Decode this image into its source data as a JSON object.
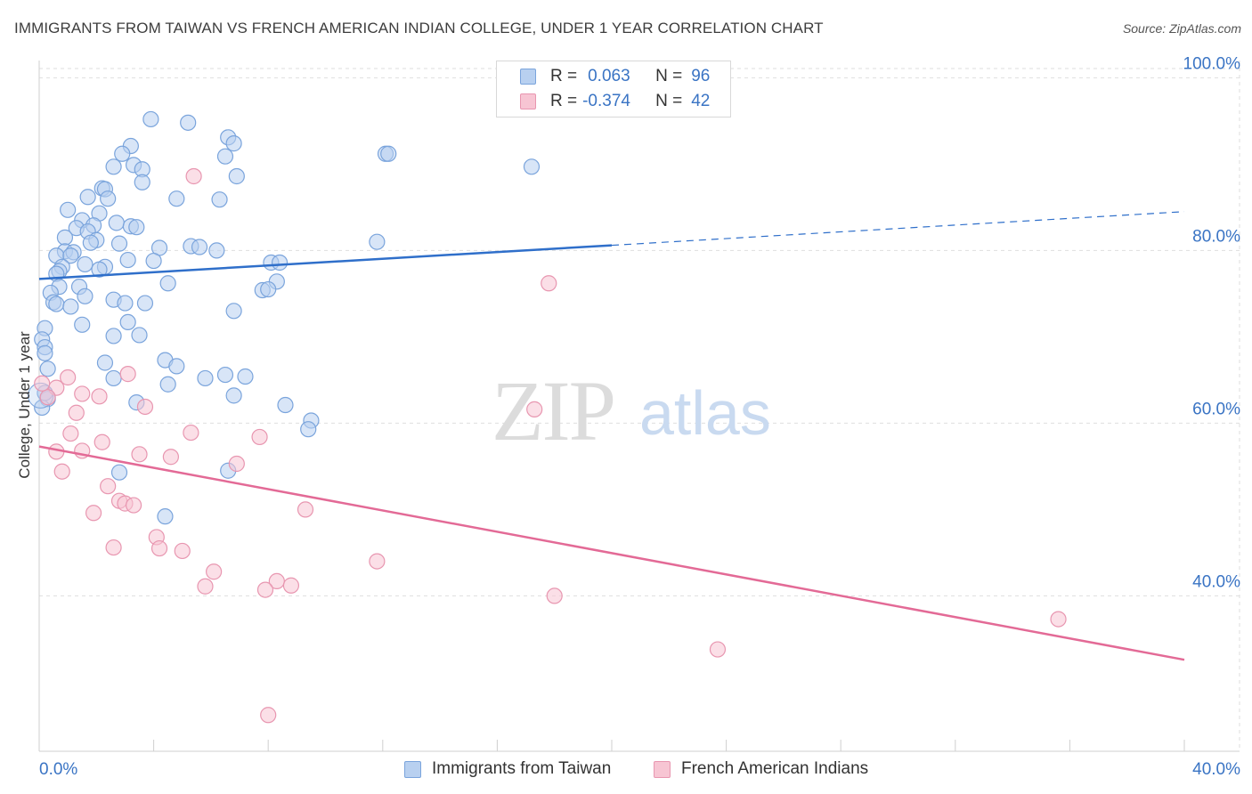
{
  "title": "IMMIGRANTS FROM TAIWAN VS FRENCH AMERICAN INDIAN COLLEGE, UNDER 1 YEAR CORRELATION CHART",
  "source": "Source: ZipAtlas.com",
  "watermark": {
    "zip": "ZIP",
    "atlas": "atlas"
  },
  "colors": {
    "blue_fill": "#b8d0f0",
    "blue_stroke": "#7aa4dc",
    "blue_line": "#2f6fca",
    "pink_fill": "#f7c5d3",
    "pink_stroke": "#e896b0",
    "pink_line": "#e36a96",
    "grid": "#dedede",
    "axis_text": "#3a74c4"
  },
  "legend": [
    {
      "r_label": "R =",
      "r_value": "0.063",
      "n_label": "N =",
      "n_value": "96"
    },
    {
      "r_label": "R =",
      "r_value": "-0.374",
      "n_label": "N =",
      "n_value": "42"
    }
  ],
  "bottom_legend": [
    "Immigrants from Taiwan",
    "French American Indians"
  ],
  "chart_data": {
    "type": "scatter",
    "title": "IMMIGRANTS FROM TAIWAN VS FRENCH AMERICAN INDIAN COLLEGE, UNDER 1 YEAR CORRELATION CHART",
    "xlabel": "",
    "ylabel": "College, Under 1 year",
    "xlim": [
      0,
      40
    ],
    "ylim": [
      22,
      102
    ],
    "x_tick_labels": [
      "0.0%",
      "40.0%"
    ],
    "y_ticks": [
      40,
      60,
      80,
      100
    ],
    "y_tick_labels": [
      "40.0%",
      "60.0%",
      "80.0%",
      "100.0%"
    ],
    "grid": true,
    "series": [
      {
        "name": "Immigrants from Taiwan",
        "r": 0.063,
        "n": 96,
        "trend": {
          "x0": 0,
          "y0": 76.7,
          "x1": 20,
          "y1": 80.6,
          "dash_x1": 40,
          "dash_y1": 84.5
        },
        "points": [
          [
            3.9,
            95.2
          ],
          [
            5.2,
            94.8
          ],
          [
            6.6,
            93.1
          ],
          [
            6.8,
            92.4
          ],
          [
            3.2,
            92.1
          ],
          [
            2.9,
            91.2
          ],
          [
            12.1,
            91.2
          ],
          [
            12.2,
            91.2
          ],
          [
            6.5,
            90.9
          ],
          [
            3.3,
            89.9
          ],
          [
            2.6,
            89.7
          ],
          [
            3.6,
            89.4
          ],
          [
            17.2,
            89.7
          ],
          [
            6.9,
            88.6
          ],
          [
            3.6,
            87.9
          ],
          [
            2.2,
            87.2
          ],
          [
            2.3,
            87.1
          ],
          [
            1.7,
            86.2
          ],
          [
            4.8,
            86.0
          ],
          [
            6.3,
            85.9
          ],
          [
            2.4,
            86.0
          ],
          [
            1.0,
            84.7
          ],
          [
            2.1,
            84.3
          ],
          [
            1.5,
            83.5
          ],
          [
            2.7,
            83.2
          ],
          [
            1.9,
            82.9
          ],
          [
            3.2,
            82.8
          ],
          [
            3.4,
            82.7
          ],
          [
            1.3,
            82.6
          ],
          [
            1.7,
            82.2
          ],
          [
            0.9,
            81.5
          ],
          [
            2.0,
            81.2
          ],
          [
            1.8,
            80.9
          ],
          [
            2.8,
            80.8
          ],
          [
            11.8,
            81.0
          ],
          [
            5.3,
            80.5
          ],
          [
            5.6,
            80.4
          ],
          [
            4.2,
            80.3
          ],
          [
            6.2,
            80.0
          ],
          [
            0.9,
            79.9
          ],
          [
            1.2,
            79.8
          ],
          [
            0.6,
            79.4
          ],
          [
            1.1,
            79.4
          ],
          [
            3.1,
            78.9
          ],
          [
            4.0,
            78.8
          ],
          [
            8.1,
            78.6
          ],
          [
            8.4,
            78.6
          ],
          [
            1.6,
            78.4
          ],
          [
            2.3,
            78.1
          ],
          [
            0.8,
            78.1
          ],
          [
            2.1,
            77.8
          ],
          [
            0.7,
            77.6
          ],
          [
            0.6,
            77.3
          ],
          [
            8.3,
            76.4
          ],
          [
            4.5,
            76.2
          ],
          [
            0.7,
            75.8
          ],
          [
            1.4,
            75.8
          ],
          [
            7.8,
            75.4
          ],
          [
            8.0,
            75.5
          ],
          [
            0.4,
            75.1
          ],
          [
            1.6,
            74.7
          ],
          [
            2.6,
            74.3
          ],
          [
            0.5,
            74.0
          ],
          [
            0.6,
            73.8
          ],
          [
            3.0,
            73.9
          ],
          [
            3.7,
            73.9
          ],
          [
            1.1,
            73.5
          ],
          [
            6.8,
            73.0
          ],
          [
            3.1,
            71.7
          ],
          [
            1.5,
            71.4
          ],
          [
            0.2,
            71.0
          ],
          [
            2.6,
            70.1
          ],
          [
            3.5,
            70.2
          ],
          [
            0.1,
            69.7
          ],
          [
            0.2,
            68.8
          ],
          [
            0.2,
            68.1
          ],
          [
            4.4,
            67.3
          ],
          [
            2.3,
            67.0
          ],
          [
            4.8,
            66.6
          ],
          [
            0.3,
            66.3
          ],
          [
            6.5,
            65.6
          ],
          [
            7.2,
            65.4
          ],
          [
            5.8,
            65.2
          ],
          [
            2.6,
            65.2
          ],
          [
            4.5,
            64.5
          ],
          [
            6.8,
            63.2
          ],
          [
            0.3,
            62.8
          ],
          [
            3.4,
            62.4
          ],
          [
            8.6,
            62.1
          ],
          [
            0.1,
            61.8
          ],
          [
            9.5,
            60.3
          ],
          [
            9.4,
            59.3
          ],
          [
            2.8,
            54.3
          ],
          [
            6.6,
            54.5
          ],
          [
            4.4,
            49.2
          ],
          [
            0.2,
            63.5
          ]
        ]
      },
      {
        "name": "French American Indians",
        "r": -0.374,
        "n": 42,
        "trend": {
          "x0": 0,
          "y0": 57.3,
          "x1": 40,
          "y1": 32.6
        },
        "points": [
          [
            5.4,
            88.6
          ],
          [
            17.8,
            76.2
          ],
          [
            3.1,
            65.7
          ],
          [
            1.0,
            65.3
          ],
          [
            0.6,
            64.1
          ],
          [
            1.5,
            63.4
          ],
          [
            2.1,
            63.1
          ],
          [
            0.3,
            63.0
          ],
          [
            3.7,
            61.9
          ],
          [
            1.3,
            61.2
          ],
          [
            17.3,
            61.6
          ],
          [
            5.3,
            58.9
          ],
          [
            1.1,
            58.8
          ],
          [
            7.7,
            58.4
          ],
          [
            2.2,
            57.8
          ],
          [
            0.6,
            56.7
          ],
          [
            1.5,
            56.8
          ],
          [
            3.5,
            56.4
          ],
          [
            4.6,
            56.1
          ],
          [
            6.9,
            55.3
          ],
          [
            0.8,
            54.4
          ],
          [
            2.4,
            52.7
          ],
          [
            2.8,
            51.0
          ],
          [
            3.0,
            50.7
          ],
          [
            3.3,
            50.5
          ],
          [
            9.3,
            50.0
          ],
          [
            1.9,
            49.6
          ],
          [
            4.1,
            46.8
          ],
          [
            2.6,
            45.6
          ],
          [
            4.2,
            45.5
          ],
          [
            5.0,
            45.2
          ],
          [
            11.8,
            44.0
          ],
          [
            6.1,
            42.8
          ],
          [
            8.3,
            41.7
          ],
          [
            8.8,
            41.2
          ],
          [
            5.8,
            41.1
          ],
          [
            7.9,
            40.7
          ],
          [
            18.0,
            40.0
          ],
          [
            35.6,
            37.3
          ],
          [
            23.7,
            33.8
          ],
          [
            8.0,
            26.2
          ],
          [
            0.1,
            64.6
          ]
        ]
      }
    ]
  }
}
